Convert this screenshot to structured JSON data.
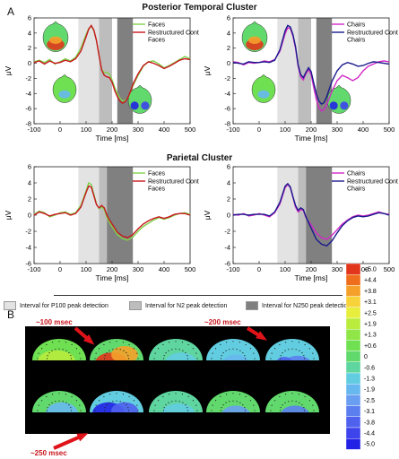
{
  "panel_a_label": "A",
  "panel_b_label": "B",
  "cluster_titles": [
    "Posterior Temporal Cluster",
    "Parietal Cluster"
  ],
  "interval_legend": [
    {
      "label": "Interval for P100 peak detection",
      "color": "#e3e3e3"
    },
    {
      "label": "Interval for N2 peak detection",
      "color": "#bdbdbd"
    },
    {
      "label": "Interval for N250 peak detection",
      "color": "#808080"
    }
  ],
  "colorbar": {
    "labels": [
      "+5.0",
      "+4.4",
      "+3.8",
      "+3.1",
      "+2.5",
      "+1.9",
      "+1.3",
      "+0.6",
      "0",
      "-0.6",
      "-1.3",
      "-1.9",
      "-2.5",
      "-3.1",
      "-3.8",
      "-4.4",
      "-5.0"
    ],
    "colors": [
      "#e2361c",
      "#ee6e1d",
      "#f5a02a",
      "#f8d23a",
      "#e7ee3d",
      "#b9ec3d",
      "#8fe646",
      "#6fe052",
      "#62d96c",
      "#5fd5a0",
      "#62cde0",
      "#67b8ef",
      "#6a9ef1",
      "#5c7ff0",
      "#4f62ee",
      "#3d44ec",
      "#2222e6"
    ]
  },
  "topo_annotations": [
    "~100 msec",
    "~200 msec",
    "~250 msec"
  ],
  "chart_data": [
    {
      "type": "line",
      "cluster": "Posterior Temporal Cluster",
      "xlabel": "Time [ms]",
      "ylabel": "μV",
      "xlim": [
        -100,
        500
      ],
      "ylim": [
        -8,
        6
      ],
      "xticks": [
        -100,
        0,
        100,
        200,
        300,
        400,
        500
      ],
      "yticks": [
        -8,
        -6,
        -4,
        -2,
        0,
        2,
        4,
        6
      ],
      "intervals": [
        [
          70,
          150
        ],
        [
          150,
          200
        ],
        [
          220,
          280
        ]
      ],
      "series": [
        {
          "name": "Faces",
          "color": "#7fd24a",
          "x": [
            -100,
            -80,
            -60,
            -40,
            -20,
            0,
            20,
            40,
            60,
            80,
            100,
            110,
            120,
            130,
            140,
            150,
            160,
            170,
            180,
            190,
            200,
            210,
            220,
            230,
            240,
            250,
            260,
            270,
            280,
            300,
            320,
            340,
            360,
            380,
            400,
            420,
            440,
            460,
            480,
            500
          ],
          "y": [
            0.2,
            0.4,
            0.1,
            0.5,
            -0.1,
            0.2,
            0.6,
            0.3,
            0.8,
            2.0,
            3.8,
            4.6,
            4.9,
            4.3,
            3.0,
            1.0,
            -0.8,
            -1.3,
            -1.2,
            -1.4,
            -2.2,
            -3.2,
            -4.0,
            -4.6,
            -5.0,
            -4.9,
            -4.6,
            -3.9,
            -3.0,
            -1.6,
            -0.4,
            0.2,
            0.3,
            -0.1,
            -0.6,
            -0.3,
            0.1,
            0.5,
            0.9,
            0.6
          ]
        },
        {
          "name": "Restructured Control Faces",
          "color": "#c8161d",
          "x": [
            -100,
            -80,
            -60,
            -40,
            -20,
            0,
            20,
            40,
            60,
            80,
            100,
            110,
            120,
            130,
            140,
            150,
            160,
            170,
            180,
            190,
            200,
            210,
            220,
            230,
            240,
            250,
            260,
            270,
            280,
            300,
            320,
            340,
            360,
            380,
            400,
            420,
            440,
            460,
            480,
            500
          ],
          "y": [
            0.1,
            0.3,
            -0.1,
            0.3,
            0.0,
            0.1,
            0.4,
            0.2,
            0.6,
            1.6,
            3.5,
            4.5,
            5.0,
            4.4,
            3.0,
            1.0,
            -0.9,
            -1.6,
            -1.8,
            -1.9,
            -2.5,
            -3.6,
            -4.4,
            -5.0,
            -5.3,
            -5.1,
            -4.6,
            -3.8,
            -2.8,
            -1.4,
            -0.3,
            0.2,
            0.0,
            -0.3,
            -0.7,
            -0.4,
            0.0,
            0.4,
            0.6,
            0.5
          ]
        }
      ]
    },
    {
      "type": "line",
      "cluster": "Posterior Temporal Cluster",
      "xlabel": "Time [ms]",
      "ylabel": "μV",
      "xlim": [
        -100,
        500
      ],
      "ylim": [
        -8,
        6
      ],
      "xticks": [
        -100,
        0,
        100,
        200,
        300,
        400,
        500
      ],
      "yticks": [
        -8,
        -6,
        -4,
        -2,
        0,
        2,
        4,
        6
      ],
      "intervals": [
        [
          70,
          150
        ],
        [
          150,
          200
        ],
        [
          220,
          280
        ]
      ],
      "series": [
        {
          "name": "Chairs",
          "color": "#d228c8",
          "x": [
            -100,
            -80,
            -60,
            -40,
            -20,
            0,
            20,
            40,
            60,
            80,
            100,
            110,
            120,
            130,
            140,
            150,
            160,
            170,
            180,
            190,
            200,
            210,
            220,
            230,
            240,
            250,
            260,
            270,
            280,
            300,
            320,
            340,
            360,
            380,
            400,
            420,
            440,
            460,
            480,
            500
          ],
          "y": [
            0.2,
            0.1,
            -0.2,
            0.1,
            0.0,
            0.1,
            0.3,
            0.2,
            0.5,
            1.6,
            3.9,
            4.7,
            4.6,
            3.6,
            2.0,
            -0.4,
            -1.8,
            -2.2,
            -1.4,
            -0.8,
            -1.5,
            -3.2,
            -4.8,
            -5.9,
            -6.3,
            -6.1,
            -5.5,
            -4.6,
            -3.7,
            -2.3,
            -1.6,
            -1.9,
            -2.3,
            -1.9,
            -1.0,
            -0.4,
            -0.1,
            0.2,
            0.3,
            0.2
          ]
        },
        {
          "name": "Restructured Control Chairs",
          "color": "#1a1a8c",
          "x": [
            -100,
            -80,
            -60,
            -40,
            -20,
            0,
            20,
            40,
            60,
            80,
            100,
            110,
            120,
            130,
            140,
            150,
            160,
            170,
            180,
            190,
            200,
            210,
            220,
            230,
            240,
            250,
            260,
            270,
            280,
            300,
            320,
            340,
            360,
            380,
            400,
            420,
            440,
            460,
            480,
            500
          ],
          "y": [
            0.1,
            0.0,
            -0.1,
            0.2,
            0.1,
            0.1,
            0.2,
            0.1,
            0.4,
            1.8,
            4.3,
            5.0,
            4.8,
            3.8,
            2.2,
            -0.2,
            -1.5,
            -1.9,
            -1.2,
            -0.6,
            -1.1,
            -2.6,
            -4.0,
            -5.0,
            -5.4,
            -5.2,
            -4.4,
            -3.4,
            -2.4,
            -1.0,
            -0.2,
            0.1,
            -0.1,
            -0.4,
            -0.3,
            0.0,
            0.2,
            0.1,
            0.0,
            -0.1
          ]
        }
      ]
    },
    {
      "type": "line",
      "cluster": "Parietal Cluster",
      "xlabel": "Time [ms]",
      "ylabel": "μV",
      "xlim": [
        -100,
        500
      ],
      "ylim": [
        -6,
        6
      ],
      "xticks": [
        -100,
        0,
        100,
        200,
        300,
        400,
        500
      ],
      "yticks": [
        -6,
        -4,
        -2,
        0,
        2,
        4,
        6
      ],
      "intervals": [
        [
          70,
          150
        ],
        [
          150,
          180
        ],
        [
          180,
          280
        ]
      ],
      "series": [
        {
          "name": "Faces",
          "color": "#7fd24a",
          "x": [
            -100,
            -80,
            -60,
            -40,
            -20,
            0,
            20,
            40,
            60,
            80,
            100,
            110,
            120,
            130,
            140,
            150,
            160,
            170,
            180,
            190,
            200,
            210,
            220,
            240,
            260,
            280,
            300,
            320,
            340,
            360,
            380,
            400,
            420,
            440,
            460,
            480,
            500
          ],
          "y": [
            0.1,
            0.5,
            0.3,
            -0.2,
            0.0,
            0.3,
            0.4,
            0.1,
            0.3,
            1.2,
            3.0,
            4.0,
            3.8,
            2.6,
            1.4,
            0.8,
            1.0,
            0.7,
            -0.3,
            -0.9,
            -1.4,
            -1.9,
            -2.4,
            -2.9,
            -3.1,
            -2.7,
            -2.0,
            -1.4,
            -1.0,
            -0.6,
            -0.3,
            -0.5,
            -0.3,
            0.0,
            0.2,
            0.3,
            0.1
          ]
        },
        {
          "name": "Restructured Control Faces",
          "color": "#c8161d",
          "x": [
            -100,
            -80,
            -60,
            -40,
            -20,
            0,
            20,
            40,
            60,
            80,
            100,
            110,
            120,
            130,
            140,
            150,
            160,
            170,
            180,
            190,
            200,
            210,
            220,
            240,
            260,
            280,
            300,
            320,
            340,
            360,
            380,
            400,
            420,
            440,
            460,
            480,
            500
          ],
          "y": [
            0.0,
            0.4,
            0.2,
            -0.1,
            0.1,
            0.2,
            0.3,
            0.0,
            0.2,
            1.0,
            2.8,
            3.6,
            3.5,
            2.4,
            1.3,
            0.9,
            1.2,
            0.9,
            0.0,
            -0.6,
            -1.1,
            -1.6,
            -2.1,
            -2.6,
            -2.8,
            -2.4,
            -1.7,
            -1.1,
            -0.7,
            -0.4,
            -0.2,
            -0.4,
            -0.2,
            0.1,
            0.2,
            0.2,
            0.0
          ]
        }
      ]
    },
    {
      "type": "line",
      "cluster": "Parietal Cluster",
      "xlabel": "Time [ms]",
      "ylabel": "μV",
      "xlim": [
        -100,
        500
      ],
      "ylim": [
        -6,
        6
      ],
      "xticks": [
        -100,
        0,
        100,
        200,
        300,
        400,
        500
      ],
      "yticks": [
        -6,
        -4,
        -2,
        0,
        2,
        4,
        6
      ],
      "intervals": [
        [
          70,
          150
        ],
        [
          150,
          180
        ],
        [
          180,
          280
        ]
      ],
      "series": [
        {
          "name": "Chairs",
          "color": "#d228c8",
          "x": [
            -100,
            -80,
            -60,
            -40,
            -20,
            0,
            20,
            40,
            60,
            80,
            100,
            110,
            120,
            130,
            140,
            150,
            160,
            170,
            180,
            190,
            200,
            210,
            220,
            240,
            260,
            280,
            300,
            320,
            340,
            360,
            380,
            400,
            420,
            440,
            460,
            480,
            500
          ],
          "y": [
            0.1,
            0.0,
            0.2,
            -0.1,
            0.0,
            0.2,
            0.0,
            -0.2,
            0.3,
            1.4,
            3.4,
            3.8,
            3.4,
            2.2,
            1.0,
            0.4,
            0.7,
            0.6,
            -0.3,
            -0.8,
            -1.2,
            -1.7,
            -2.2,
            -2.8,
            -3.0,
            -2.5,
            -1.8,
            -1.1,
            -0.6,
            -0.2,
            0.0,
            -0.1,
            0.0,
            0.2,
            0.4,
            0.2,
            0.1
          ]
        },
        {
          "name": "Restructured Control Chairs",
          "color": "#1a1a8c",
          "x": [
            -100,
            -80,
            -60,
            -40,
            -20,
            0,
            20,
            40,
            60,
            80,
            100,
            110,
            120,
            130,
            140,
            150,
            160,
            170,
            180,
            190,
            200,
            210,
            220,
            240,
            260,
            280,
            300,
            320,
            340,
            360,
            380,
            400,
            420,
            440,
            460,
            480,
            500
          ],
          "y": [
            0.0,
            0.1,
            0.1,
            0.0,
            0.1,
            0.1,
            0.1,
            -0.1,
            0.4,
            1.6,
            3.6,
            3.9,
            3.5,
            2.3,
            1.2,
            0.6,
            0.9,
            0.7,
            -0.2,
            -0.9,
            -1.6,
            -2.3,
            -3.0,
            -3.6,
            -3.8,
            -3.2,
            -2.2,
            -1.3,
            -0.7,
            -0.3,
            -0.1,
            -0.2,
            -0.1,
            0.1,
            0.3,
            0.2,
            0.0
          ]
        }
      ]
    }
  ]
}
